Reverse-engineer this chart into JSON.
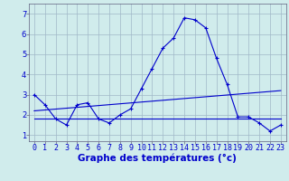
{
  "background_color": "#d0ecec",
  "grid_color": "#a0b8c8",
  "line_color": "#0000cc",
  "xlabel": "Graphe des températures (°c)",
  "xlabel_fontsize": 7.5,
  "tick_fontsize": 6,
  "xlim": [
    -0.5,
    23.5
  ],
  "ylim": [
    0.7,
    7.5
  ],
  "yticks": [
    1,
    2,
    3,
    4,
    5,
    6,
    7
  ],
  "xticks": [
    0,
    1,
    2,
    3,
    4,
    5,
    6,
    7,
    8,
    9,
    10,
    11,
    12,
    13,
    14,
    15,
    16,
    17,
    18,
    19,
    20,
    21,
    22,
    23
  ],
  "series": [
    {
      "x": [
        0,
        1,
        2,
        3,
        4,
        5,
        6,
        7,
        8,
        9,
        10,
        11,
        12,
        13,
        14,
        15,
        16,
        17,
        18,
        19,
        20,
        21,
        22,
        23
      ],
      "y": [
        3.0,
        2.5,
        1.8,
        1.5,
        2.5,
        2.6,
        1.8,
        1.6,
        2.0,
        2.3,
        3.3,
        4.3,
        5.3,
        5.8,
        6.8,
        6.7,
        6.3,
        4.8,
        3.5,
        1.9,
        1.9,
        1.6,
        1.2,
        1.5
      ],
      "marker": "+"
    },
    {
      "x": [
        0,
        23
      ],
      "y": [
        2.2,
        3.2
      ],
      "marker": null
    },
    {
      "x": [
        0,
        23
      ],
      "y": [
        1.8,
        1.8
      ],
      "marker": null
    }
  ]
}
